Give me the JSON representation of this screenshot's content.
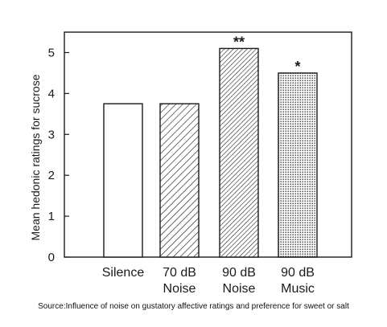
{
  "chart_data": {
    "type": "bar",
    "categories": [
      "Silence",
      "70 dB Noise",
      "90 dB Noise",
      "90 dB Music"
    ],
    "category_lines": [
      [
        "Silence"
      ],
      [
        "70 dB",
        "Noise"
      ],
      [
        "90 dB",
        "Noise"
      ],
      [
        "90 dB",
        "Music"
      ]
    ],
    "values": [
      3.75,
      3.75,
      5.1,
      4.5
    ],
    "fills": [
      "white",
      "hatch",
      "hatch-dense",
      "dots"
    ],
    "significance": [
      "",
      "",
      "**",
      "*"
    ],
    "ylabel": "Mean hedonic ratings for sucrose",
    "xlabel": "",
    "ylim": [
      0,
      5.5
    ],
    "yticks": [
      0,
      1,
      2,
      3,
      4,
      5
    ],
    "grid": false
  },
  "source_text": "Source:Influence of noise on gustatory affective ratings and preference for sweet or salt"
}
